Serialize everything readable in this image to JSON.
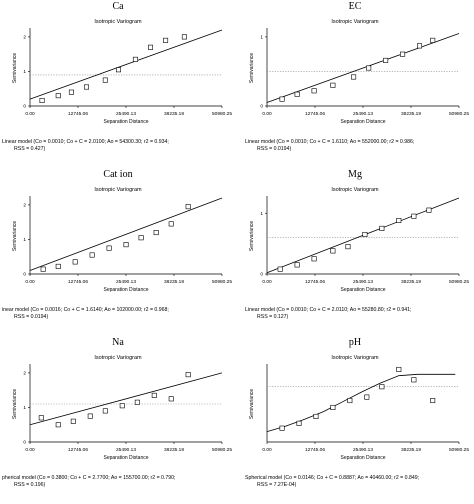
{
  "figure": {
    "colors": {
      "fit_line": "#000000",
      "sill_line": "#8a8a8a",
      "points": "#000000",
      "axes": "#000000"
    }
  },
  "chart_data": [
    {
      "type": "scatter",
      "panel_title": "Ca",
      "plot_title": "Isotropic Variogram",
      "xlabel": "Separation Distance",
      "ylabel": "Semivariance",
      "x_ticks": [
        "0.00",
        "12745.06",
        "25490.13",
        "38235.19",
        "50980.25"
      ],
      "y_ticks": [
        "0",
        "1",
        "2"
      ],
      "xlim": [
        0,
        50980.25
      ],
      "ylim": [
        0,
        2.2
      ],
      "sill": 0.9,
      "model": "linear",
      "fit": {
        "x": [
          0,
          50980.25
        ],
        "y": [
          0.2,
          2.2
        ]
      },
      "points": [
        {
          "x": 3200,
          "y": 0.16
        },
        {
          "x": 7500,
          "y": 0.3
        },
        {
          "x": 11000,
          "y": 0.4
        },
        {
          "x": 15000,
          "y": 0.55
        },
        {
          "x": 20000,
          "y": 0.75
        },
        {
          "x": 23500,
          "y": 1.05
        },
        {
          "x": 28000,
          "y": 1.35
        },
        {
          "x": 32000,
          "y": 1.7
        },
        {
          "x": 36000,
          "y": 1.9
        },
        {
          "x": 41000,
          "y": 2.0
        }
      ],
      "caption": [
        "Linear model (Co = 0.0010; Co + C = 2.0100; Ao = 54300.30; r2 = 0.934;",
        "RSS = 0.427)"
      ]
    },
    {
      "type": "scatter",
      "panel_title": "EC",
      "plot_title": "Isotropic Variogram",
      "xlabel": "Separation Distance",
      "ylabel": "Semivariance",
      "x_ticks": [
        "0.00",
        "12745.06",
        "25490.13",
        "38235.19",
        "50980.25"
      ],
      "y_ticks": [
        "0",
        "1"
      ],
      "xlim": [
        0,
        50980.25
      ],
      "ylim": [
        0,
        1.1
      ],
      "sill": 0.5,
      "model": "linear",
      "fit": {
        "x": [
          0,
          50980.25
        ],
        "y": [
          0.05,
          1.05
        ]
      },
      "points": [
        {
          "x": 4000,
          "y": 0.1
        },
        {
          "x": 8000,
          "y": 0.17
        },
        {
          "x": 12500,
          "y": 0.22
        },
        {
          "x": 17500,
          "y": 0.3
        },
        {
          "x": 23000,
          "y": 0.42
        },
        {
          "x": 27000,
          "y": 0.55
        },
        {
          "x": 31500,
          "y": 0.66
        },
        {
          "x": 36000,
          "y": 0.75
        },
        {
          "x": 40500,
          "y": 0.87
        },
        {
          "x": 44000,
          "y": 0.95
        }
      ],
      "caption": [
        "Linear model (Co = 0.0010; Co + C = 1.6110; Ao = 552000.00; r2 = 0.986;",
        "RSS = 0.0194)"
      ]
    },
    {
      "type": "scatter",
      "panel_title": "Cat ion",
      "plot_title": "Isotropic Variogram",
      "xlabel": "Separation Distance",
      "ylabel": "Semivariance",
      "x_ticks": [
        "0.00",
        "12745.06",
        "25490.13",
        "38235.19",
        "50980.25"
      ],
      "y_ticks": [
        "0",
        "1",
        "2"
      ],
      "xlim": [
        0,
        50980.25
      ],
      "ylim": [
        0,
        2.2
      ],
      "sill": null,
      "model": "linear",
      "fit": {
        "x": [
          0,
          50980.25
        ],
        "y": [
          0.1,
          2.2
        ]
      },
      "points": [
        {
          "x": 3500,
          "y": 0.14
        },
        {
          "x": 7500,
          "y": 0.22
        },
        {
          "x": 12000,
          "y": 0.35
        },
        {
          "x": 16500,
          "y": 0.55
        },
        {
          "x": 21000,
          "y": 0.75
        },
        {
          "x": 25500,
          "y": 0.85
        },
        {
          "x": 29500,
          "y": 1.05
        },
        {
          "x": 33500,
          "y": 1.2
        },
        {
          "x": 37500,
          "y": 1.45
        },
        {
          "x": 42000,
          "y": 1.95
        }
      ],
      "caption": [
        "inear model (Co = 0.0016; Co + C = 1.6140; Ao = 102000.00; r2 = 0.968;",
        "RSS = 0.0194)"
      ]
    },
    {
      "type": "scatter",
      "panel_title": "Mg",
      "plot_title": "Isotropic Variogram",
      "xlabel": "Separation Distance",
      "ylabel": "Semivariance",
      "x_ticks": [
        "0.00",
        "12745.06",
        "25490.13",
        "38235.19",
        "50980.25"
      ],
      "y_ticks": [
        "0",
        "1"
      ],
      "xlim": [
        0,
        50980.25
      ],
      "ylim": [
        0,
        1.25
      ],
      "sill": 0.6,
      "model": "linear",
      "fit": {
        "x": [
          0,
          50980.25
        ],
        "y": [
          0.02,
          1.25
        ]
      },
      "points": [
        {
          "x": 3500,
          "y": 0.08
        },
        {
          "x": 8000,
          "y": 0.15
        },
        {
          "x": 12500,
          "y": 0.25
        },
        {
          "x": 17500,
          "y": 0.38
        },
        {
          "x": 21500,
          "y": 0.45
        },
        {
          "x": 26000,
          "y": 0.65
        },
        {
          "x": 30500,
          "y": 0.75
        },
        {
          "x": 35000,
          "y": 0.88
        },
        {
          "x": 39000,
          "y": 0.95
        },
        {
          "x": 43000,
          "y": 1.05
        }
      ],
      "caption": [
        "Linear model (Co = 0.0010; Co + C = 2.0110; Ao = 55280.80; r2 = 0.941;",
        "RSS = 0.127)"
      ]
    },
    {
      "type": "scatter",
      "panel_title": "Na",
      "plot_title": "Isotropic Variogram",
      "xlabel": "Separation Distance",
      "ylabel": "Semivariance",
      "x_ticks": [
        "0.00",
        "12745.06",
        "25490.13",
        "38235.19",
        "50980.25"
      ],
      "y_ticks": [
        "0",
        "1",
        "2"
      ],
      "xlim": [
        0,
        50980.25
      ],
      "ylim": [
        0,
        2.2
      ],
      "sill": 1.1,
      "model": "linear",
      "fit": {
        "x": [
          0,
          50980.25
        ],
        "y": [
          0.5,
          2.0
        ]
      },
      "points": [
        {
          "x": 3000,
          "y": 0.7
        },
        {
          "x": 7500,
          "y": 0.5
        },
        {
          "x": 11500,
          "y": 0.6
        },
        {
          "x": 16000,
          "y": 0.75
        },
        {
          "x": 20000,
          "y": 0.9
        },
        {
          "x": 24500,
          "y": 1.05
        },
        {
          "x": 28500,
          "y": 1.15
        },
        {
          "x": 33000,
          "y": 1.35
        },
        {
          "x": 37500,
          "y": 1.25
        },
        {
          "x": 42000,
          "y": 1.95
        }
      ],
      "caption": [
        "pherical model (Co = 0.3800; Co + C = 2.7700; Ao = 155700.00; r2 = 0.790;",
        "RSS = 0.196)"
      ]
    },
    {
      "type": "scatter",
      "panel_title": "pH",
      "plot_title": "Isotropic Variogram",
      "xlabel": "Separation Distance",
      "ylabel": "Semivariance",
      "x_ticks": [
        "0.00",
        "12745.06",
        "25490.13",
        "38235.19",
        "50980.25"
      ],
      "y_ticks": [],
      "xlim": [
        0,
        50980.25
      ],
      "ylim": [
        0,
        1.1
      ],
      "sill": 0.8,
      "model": "spherical",
      "fit": {
        "x": [
          0,
          5000,
          10000,
          15000,
          20000,
          25000,
          30000,
          35000,
          40000,
          45000,
          50000
        ],
        "y": [
          0.15,
          0.23,
          0.33,
          0.44,
          0.58,
          0.72,
          0.85,
          0.96,
          0.98,
          0.98,
          0.98
        ]
      },
      "points": [
        {
          "x": 4000,
          "y": 0.2
        },
        {
          "x": 8500,
          "y": 0.27
        },
        {
          "x": 13000,
          "y": 0.37
        },
        {
          "x": 17500,
          "y": 0.5
        },
        {
          "x": 22000,
          "y": 0.6
        },
        {
          "x": 26500,
          "y": 0.65
        },
        {
          "x": 30500,
          "y": 0.8
        },
        {
          "x": 35000,
          "y": 1.05
        },
        {
          "x": 39000,
          "y": 0.9
        },
        {
          "x": 44000,
          "y": 0.6
        }
      ],
      "caption": [
        "Spherical model (Co = 0.0146; Co + C = 0.8887; Ao = 40460.00; r2 = 0.849;",
        "RSS = 7.27E-04)"
      ]
    }
  ]
}
